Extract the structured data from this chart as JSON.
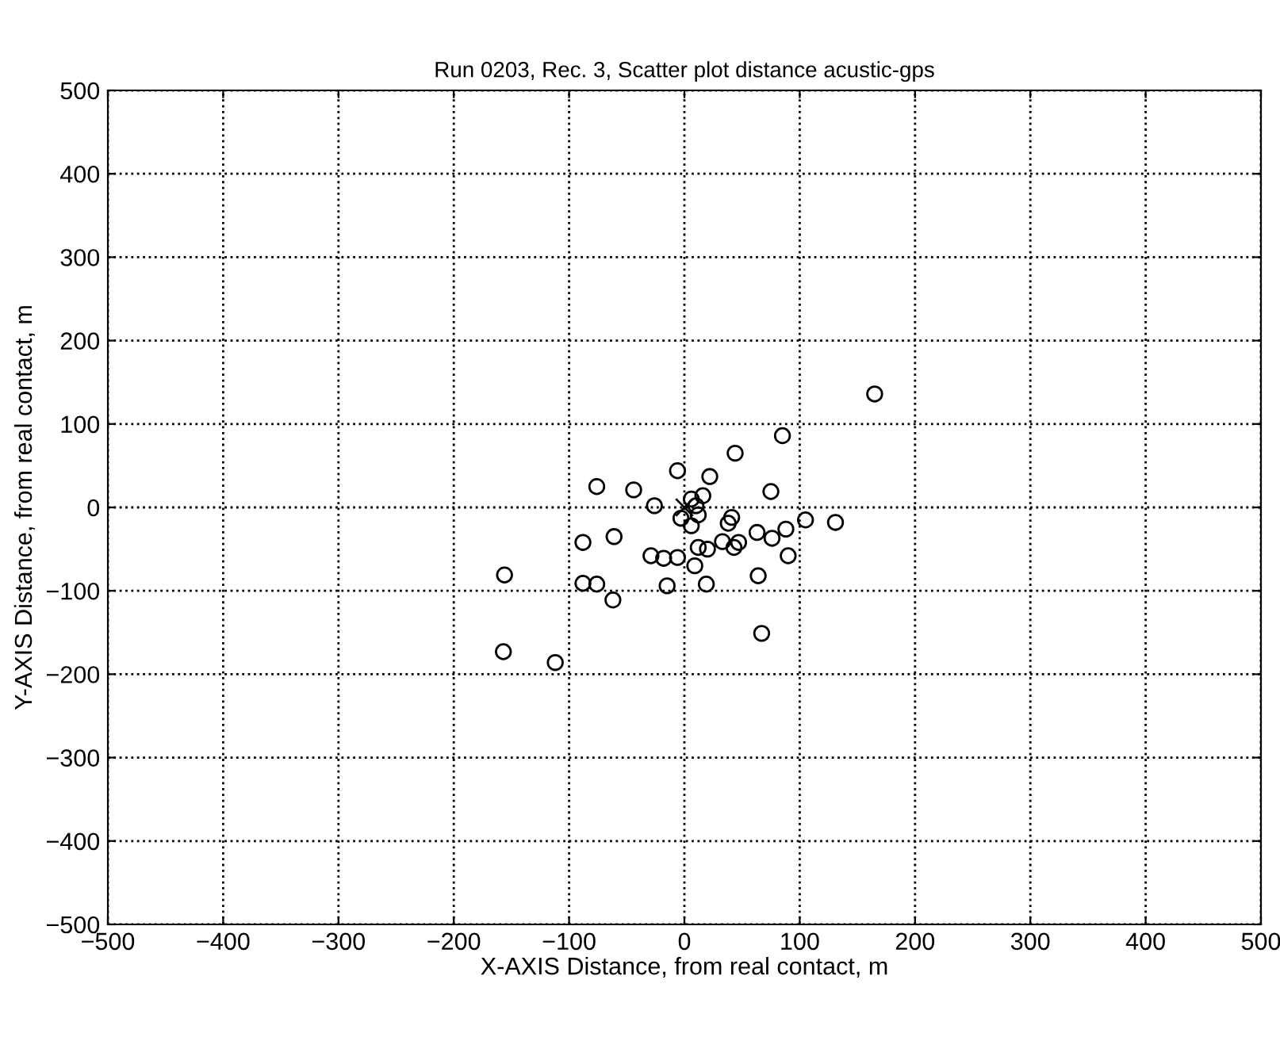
{
  "chart_data": {
    "type": "scatter",
    "title": "Run 0203, Rec. 3, Scatter plot distance acustic-gps",
    "xlabel": "X-AXIS Distance, from real contact, m",
    "ylabel": "Y-AXIS Distance, from real contact, m",
    "xlim": [
      -500,
      500
    ],
    "ylim": [
      -500,
      500
    ],
    "xticks": [
      -500,
      -400,
      -300,
      -200,
      -100,
      0,
      100,
      200,
      300,
      400,
      500
    ],
    "yticks": [
      -500,
      -400,
      -300,
      -200,
      -100,
      0,
      100,
      200,
      300,
      400,
      500
    ],
    "grid": true,
    "line_style": "dotted",
    "series": [
      {
        "color": "#000000",
        "marker": "circle",
        "x": [
          165,
          85,
          44,
          -6,
          22,
          -76,
          -44,
          75,
          -26,
          6,
          16,
          10,
          12,
          -3,
          6,
          41,
          38,
          105,
          131,
          -88,
          -61,
          63,
          76,
          88,
          33,
          47,
          43,
          12,
          20,
          -29,
          -18,
          -6,
          90,
          9,
          -156,
          64,
          -88,
          -76,
          -15,
          19,
          -62,
          67,
          -157,
          -112
        ],
        "values": [
          136,
          86,
          65,
          44,
          37,
          25,
          21,
          19,
          2,
          10,
          14,
          2,
          -9,
          -13,
          -22,
          -12,
          -19,
          -15,
          -18,
          -42,
          -35,
          -30,
          -37,
          -26,
          -41,
          -42,
          -48,
          -48,
          -50,
          -58,
          -61,
          -60,
          -58,
          -70,
          -81,
          -82,
          -91,
          -92,
          -94,
          -92,
          -111,
          -151,
          -173,
          -186
        ]
      },
      {
        "color": "#000000",
        "marker": "cross",
        "x": [
          0
        ],
        "values": [
          0
        ]
      }
    ]
  }
}
